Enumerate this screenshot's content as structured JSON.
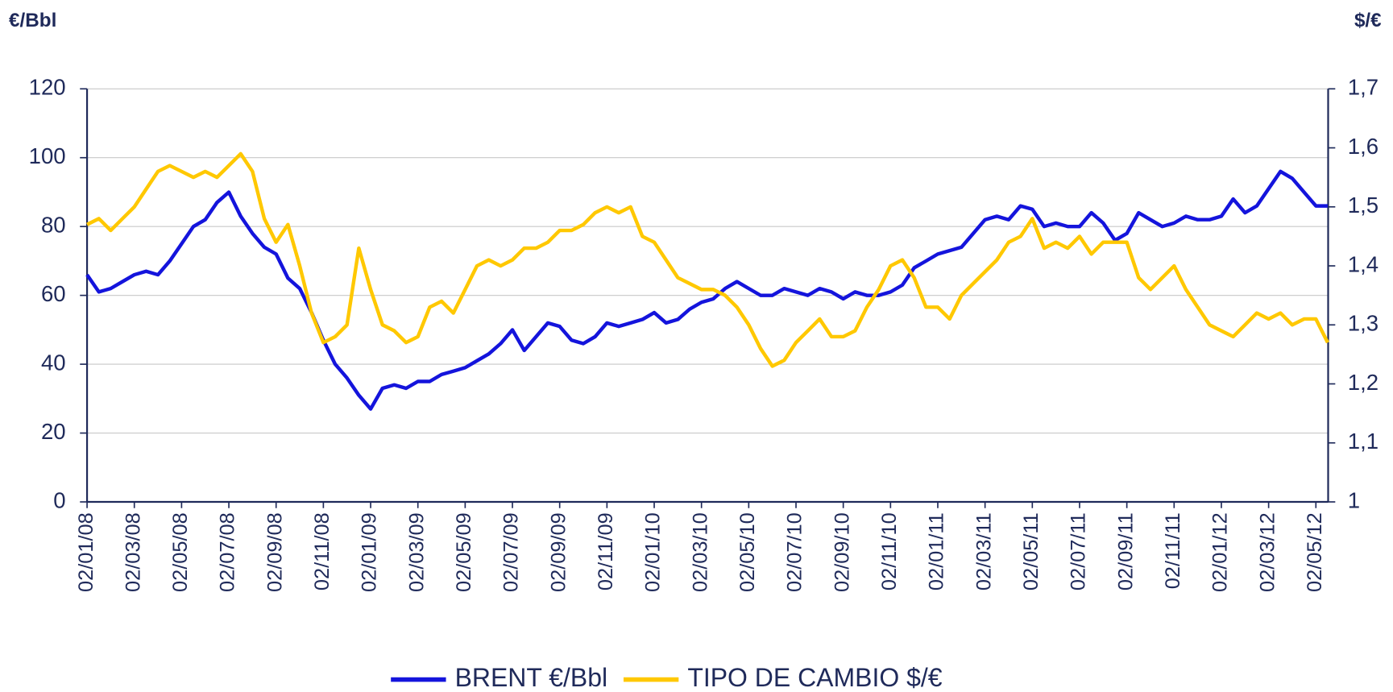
{
  "chart_data": {
    "type": "line",
    "y_label": "€/Bbl",
    "y2_label": "$/€",
    "categories": [
      "02/01/08",
      null,
      null,
      null,
      "02/03/08",
      null,
      null,
      null,
      "02/05/08",
      null,
      null,
      null,
      "02/07/08",
      null,
      null,
      null,
      "02/09/08",
      null,
      null,
      null,
      "02/11/08",
      null,
      null,
      null,
      "02/01/09",
      null,
      null,
      null,
      "02/03/09",
      null,
      null,
      null,
      "02/05/09",
      null,
      null,
      null,
      "02/07/09",
      null,
      null,
      null,
      "02/09/09",
      null,
      null,
      null,
      "02/11/09",
      null,
      null,
      null,
      "02/01/10",
      null,
      null,
      null,
      "02/03/10",
      null,
      null,
      null,
      "02/05/10",
      null,
      null,
      null,
      "02/07/10",
      null,
      null,
      null,
      "02/09/10",
      null,
      null,
      null,
      "02/11/10",
      null,
      null,
      null,
      "02/01/11",
      null,
      null,
      null,
      "02/03/11",
      null,
      null,
      null,
      "02/05/11",
      null,
      null,
      null,
      "02/07/11",
      null,
      null,
      null,
      "02/09/11",
      null,
      null,
      null,
      "02/11/11",
      null,
      null,
      null,
      "02/01/12",
      null,
      null,
      null,
      "02/03/12",
      null,
      null,
      null,
      "02/05/12",
      null
    ],
    "series": [
      {
        "name": "BRENT €/Bbl",
        "color": "#1414dc",
        "axis": "y",
        "values": [
          66,
          61,
          62,
          64,
          66,
          67,
          66,
          70,
          75,
          80,
          82,
          87,
          90,
          83,
          78,
          74,
          72,
          65,
          62,
          55,
          47,
          40,
          36,
          31,
          27,
          33,
          34,
          33,
          35,
          35,
          37,
          38,
          39,
          41,
          43,
          46,
          50,
          44,
          48,
          52,
          51,
          47,
          46,
          48,
          52,
          51,
          52,
          53,
          55,
          52,
          53,
          56,
          58,
          59,
          62,
          64,
          62,
          60,
          60,
          62,
          61,
          60,
          62,
          61,
          59,
          61,
          60,
          60,
          61,
          63,
          68,
          70,
          72,
          73,
          74,
          78,
          82,
          83,
          82,
          86,
          85,
          80,
          81,
          80,
          80,
          84,
          81,
          76,
          78,
          84,
          82,
          80,
          81,
          83,
          82,
          82,
          83,
          88,
          84,
          86,
          91,
          96,
          94,
          90,
          86,
          86
        ]
      },
      {
        "name": "TIPO DE CAMBIO $/€",
        "color": "#ffc800",
        "axis": "y2",
        "values": [
          1.47,
          1.48,
          1.46,
          1.48,
          1.5,
          1.53,
          1.56,
          1.57,
          1.56,
          1.55,
          1.56,
          1.55,
          1.57,
          1.59,
          1.56,
          1.48,
          1.44,
          1.47,
          1.4,
          1.32,
          1.27,
          1.28,
          1.3,
          1.43,
          1.36,
          1.3,
          1.29,
          1.27,
          1.28,
          1.33,
          1.34,
          1.32,
          1.36,
          1.4,
          1.41,
          1.4,
          1.41,
          1.43,
          1.43,
          1.44,
          1.46,
          1.46,
          1.47,
          1.49,
          1.5,
          1.49,
          1.5,
          1.45,
          1.44,
          1.41,
          1.38,
          1.37,
          1.36,
          1.36,
          1.35,
          1.33,
          1.3,
          1.26,
          1.23,
          1.24,
          1.27,
          1.29,
          1.31,
          1.28,
          1.28,
          1.29,
          1.33,
          1.36,
          1.4,
          1.41,
          1.38,
          1.33,
          1.33,
          1.31,
          1.35,
          1.37,
          1.39,
          1.41,
          1.44,
          1.45,
          1.48,
          1.43,
          1.44,
          1.43,
          1.45,
          1.42,
          1.44,
          1.44,
          1.44,
          1.38,
          1.36,
          1.38,
          1.4,
          1.36,
          1.33,
          1.3,
          1.29,
          1.28,
          1.3,
          1.32,
          1.31,
          1.32,
          1.3,
          1.31,
          1.31,
          1.27
        ]
      }
    ],
    "ylim": [
      0,
      120
    ],
    "yticks": [
      0,
      20,
      40,
      60,
      80,
      100,
      120
    ],
    "y2lim": [
      1,
      1.7
    ],
    "y2ticks": [
      1,
      {
        "value": 1.1,
        "label": "1,1"
      },
      {
        "value": 1.2,
        "label": "1,2"
      },
      {
        "value": 1.3,
        "label": "1,3"
      },
      {
        "value": 1.4,
        "label": "1,4"
      },
      {
        "value": 1.5,
        "label": "1,5"
      },
      {
        "value": 1.6,
        "label": "1,6"
      },
      {
        "value": 1.7,
        "label": "1,7"
      }
    ],
    "grid": true,
    "legend": "bottom"
  }
}
